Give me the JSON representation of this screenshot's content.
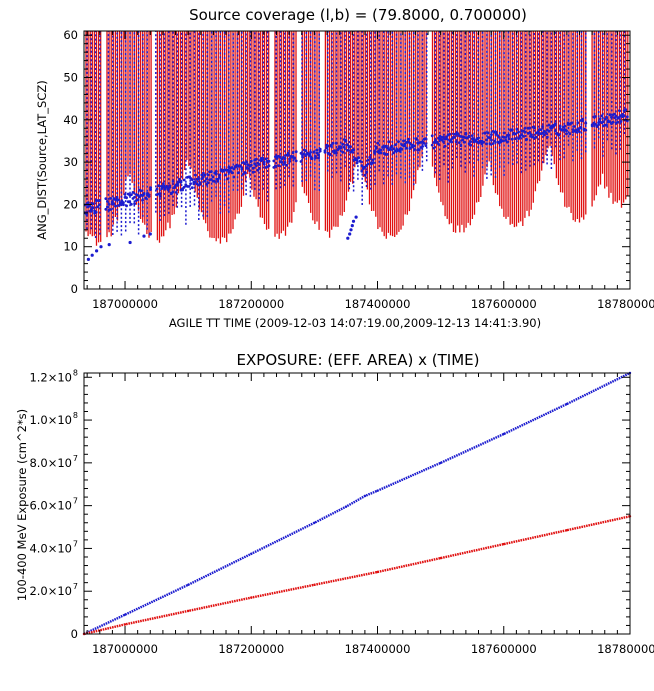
{
  "colors": {
    "series1": "#1c1ccf",
    "series2": "#e01010",
    "axes": "#000000",
    "background": "#ffffff"
  },
  "chart_data": [
    {
      "type": "scatter",
      "title": "Source coverage (l,b) = (79.8000, 0.700000)",
      "xlabel": "AGILE TT TIME (2009-12-03 14:07:19.00,2009-12-13 14:41:3.90)",
      "ylabel": "ANG_DIST(Source,LAT_SCZ)",
      "xlim": [
        186935000,
        187800000
      ],
      "ylim": [
        0,
        61
      ],
      "x_ticks": [
        187000000,
        187200000,
        187400000,
        187600000,
        187800000
      ],
      "x_tick_labels": [
        "187000000",
        "187200000",
        "187400000",
        "187600000",
        "187800000"
      ],
      "y_ticks": [
        0,
        10,
        20,
        30,
        40,
        50,
        60
      ],
      "y_tick_labels": [
        "0",
        "10",
        "20",
        "30",
        "40",
        "50",
        "60"
      ],
      "grid": false,
      "series": [
        {
          "color": "#1c1ccf",
          "trend_x": [
            186940000,
            187000000,
            187100000,
            187200000,
            187300000,
            187350000,
            187380000,
            187400000,
            187500000,
            187600000,
            187700000,
            187790000
          ],
          "trend_y": [
            19,
            21,
            25,
            29,
            32,
            34,
            28,
            33,
            35,
            36,
            38,
            41
          ],
          "min_y": 7,
          "max_y": 61
        },
        {
          "color": "#e01010",
          "orbit_minima_x": [
            186960000,
            187050000,
            187150000,
            187240000,
            187320000,
            187420000,
            187530000,
            187620000,
            187720000,
            187785000
          ],
          "orbit_minima_y": [
            11,
            12,
            11,
            12,
            13,
            12,
            14,
            15,
            16,
            20
          ],
          "min_y": 11,
          "max_y": 61
        }
      ],
      "gaps_x": [
        186965000,
        187045000,
        187232000,
        187275000,
        187313000,
        187482000,
        187735000
      ]
    },
    {
      "type": "line",
      "title": "EXPOSURE: (EFF. AREA) x (TIME)",
      "xlabel": "",
      "ylabel": "100-400 MeV Exposure (cm^2*s)",
      "xlim": [
        186935000,
        187800000
      ],
      "ylim": [
        0,
        122000000
      ],
      "x_ticks": [
        187000000,
        187200000,
        187400000,
        187600000,
        187800000
      ],
      "x_tick_labels": [
        "187000000",
        "187200000",
        "187400000",
        "187600000",
        "187800000"
      ],
      "y_ticks": [
        0,
        20000000,
        40000000,
        60000000,
        80000000,
        100000000,
        120000000
      ],
      "y_tick_mantissa": [
        "0",
        "2.0×10",
        "4.0×10",
        "6.0×10",
        "8.0×10",
        "1.0×10",
        "1.2×10"
      ],
      "y_tick_exponent": [
        "",
        "7",
        "7",
        "7",
        "7",
        "8",
        "8"
      ],
      "grid": false,
      "series": [
        {
          "color": "#1c1ccf",
          "x": [
            186935000,
            187000000,
            187100000,
            187200000,
            187300000,
            187350000,
            187380000,
            187400000,
            187500000,
            187600000,
            187700000,
            187800000
          ],
          "y": [
            0,
            9000000,
            23000000,
            37500000,
            52000000,
            59500000,
            64500000,
            67000000,
            80000000,
            93500000,
            107500000,
            122000000
          ]
        },
        {
          "color": "#e01010",
          "x": [
            186935000,
            187000000,
            187100000,
            187200000,
            187300000,
            187400000,
            187500000,
            187600000,
            187700000,
            187800000
          ],
          "y": [
            0,
            4500000,
            10800000,
            17000000,
            23000000,
            29000000,
            35500000,
            42000000,
            48500000,
            55000000
          ]
        }
      ]
    }
  ]
}
